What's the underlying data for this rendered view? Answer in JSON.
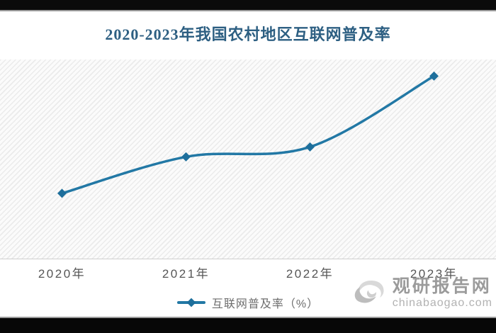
{
  "title": "2020-2023年我国农村地区互联网普及率",
  "chart_data": {
    "type": "line",
    "title": "2020-2023年我国农村地区互联网普及率",
    "categories": [
      "2020年",
      "2021年",
      "2022年",
      "2023年"
    ],
    "series": [
      {
        "name": "互联网普及率（%）",
        "values": [
          55.9,
          59.2,
          60.1,
          66.5
        ]
      }
    ],
    "xlabel": "",
    "ylabel": "",
    "ylim": [
      50,
      68
    ],
    "grid": false,
    "y_axis_visible": false,
    "legend_position": "bottom",
    "line_color": "#2278a5",
    "marker": "diamond",
    "marker_color": "#1e6f9c",
    "note": "y-axis has no labels; values estimated from marker positions"
  },
  "legend": {
    "label": "互联网普及率（%）"
  },
  "watermark": {
    "name": "观研报告网",
    "domain": "chinabaogao.com"
  },
  "colors": {
    "title_text": "#2d5f82",
    "axis_label_text": "#565656",
    "legend_text": "#6e6e6e",
    "watermark_text": "#9b9b9b",
    "top_bottom_bars": "#0b0b0b",
    "plot_hatch": "#ebebeb"
  }
}
